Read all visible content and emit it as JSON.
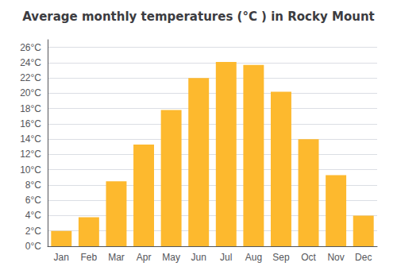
{
  "chart_data": {
    "type": "bar",
    "title": "Average monthly temperatures (°C ) in Rocky Mount",
    "categories": [
      "Jan",
      "Feb",
      "Mar",
      "Apr",
      "May",
      "Jun",
      "Jul",
      "Aug",
      "Sep",
      "Oct",
      "Nov",
      "Dec"
    ],
    "values": [
      2,
      3.8,
      8.5,
      13.3,
      17.8,
      22,
      24.1,
      23.7,
      20.2,
      14,
      9.3,
      4
    ],
    "color": "#FDB92E",
    "ylim": [
      0,
      27
    ],
    "yticks": [
      {
        "value": 0,
        "label": "0°C"
      },
      {
        "value": 2,
        "label": "2°C"
      },
      {
        "value": 4,
        "label": "4°C"
      },
      {
        "value": 6,
        "label": "6°C"
      },
      {
        "value": 8,
        "label": "8°C"
      },
      {
        "value": 10,
        "label": "10°C"
      },
      {
        "value": 12,
        "label": "12°C"
      },
      {
        "value": 14,
        "label": "14°C"
      },
      {
        "value": 16,
        "label": "16°C"
      },
      {
        "value": 18,
        "label": "18°C"
      },
      {
        "value": 20,
        "label": "20°C"
      },
      {
        "value": 22,
        "label": "22°C"
      },
      {
        "value": 24,
        "label": "24°C"
      },
      {
        "value": 26,
        "label": "26°C"
      }
    ],
    "grid": true
  }
}
